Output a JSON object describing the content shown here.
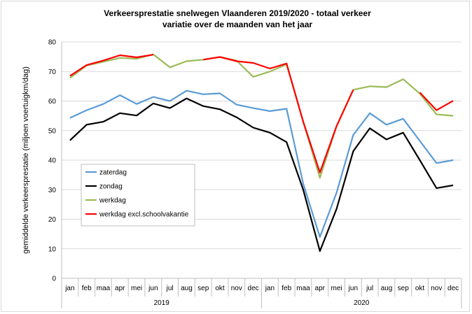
{
  "chart_data": {
    "type": "line",
    "title": "Verkeersprestatie snelwegen Vlaanderen 2019/2020 - totaal verkeer",
    "subtitle": "variatie over de maanden van het jaar",
    "ylabel": "gemiddelde verkeersprestatie  (miljoen voertuigkm/dag)",
    "xlabel": "",
    "ylim": [
      0,
      80
    ],
    "yticks": [
      "0",
      "10",
      "20",
      "30",
      "40",
      "50",
      "60",
      "70",
      "80"
    ],
    "grid": true,
    "legend_position": "left-middle",
    "months": [
      "jan",
      "feb",
      "maa",
      "apr",
      "mei",
      "jun",
      "jul",
      "aug",
      "sep",
      "okt",
      "nov",
      "dec"
    ],
    "year_labels": [
      "2019",
      "2020"
    ],
    "categories": [
      "jan 2019",
      "feb 2019",
      "maa 2019",
      "apr 2019",
      "mei 2019",
      "jun 2019",
      "jul 2019",
      "aug 2019",
      "sep 2019",
      "okt 2019",
      "nov 2019",
      "dec 2019",
      "jan 2020",
      "feb 2020",
      "maa 2020",
      "apr 2020",
      "mei 2020",
      "jun 2020",
      "jul 2020",
      "aug 2020",
      "sep 2020",
      "okt 2020",
      "nov 2020",
      "dec 2020"
    ],
    "series": [
      {
        "name": "zaterdag",
        "color": "#5b9bd5",
        "values": [
          54.3,
          56.9,
          59.0,
          62.0,
          59.0,
          61.4,
          60.0,
          63.5,
          62.3,
          62.6,
          58.8,
          57.6,
          56.6,
          57.4,
          32.0,
          14.0,
          29.0,
          48.5,
          55.9,
          52.0,
          54.0,
          46.5,
          39.0,
          40.0
        ]
      },
      {
        "name": "zondag",
        "color": "#000000",
        "values": [
          46.7,
          52.0,
          53.0,
          55.9,
          55.1,
          59.2,
          57.6,
          60.9,
          58.3,
          57.2,
          54.5,
          51.0,
          49.3,
          46.1,
          30.0,
          9.2,
          23.5,
          43.0,
          50.8,
          47.0,
          49.3,
          40.0,
          30.5,
          31.5
        ]
      },
      {
        "name": "werkdag",
        "color": "#9bbb59",
        "values": [
          67.8,
          72.0,
          73.3,
          74.6,
          74.3,
          75.8,
          71.4,
          73.5,
          74.0,
          74.9,
          73.7,
          68.2,
          70.0,
          72.4,
          53.0,
          34.0,
          51.5,
          63.8,
          65.0,
          64.7,
          67.4,
          62.5,
          55.5,
          55.0
        ]
      },
      {
        "name": "werkdag excl.schoolvakantie",
        "color": "#ff0000",
        "values": [
          68.5,
          72.2,
          73.7,
          75.5,
          74.8,
          75.7,
          null,
          null,
          74.0,
          74.9,
          73.5,
          72.9,
          71.0,
          72.7,
          53.0,
          35.8,
          51.5,
          63.8,
          null,
          null,
          null,
          62.9,
          56.9,
          60.1
        ]
      }
    ]
  }
}
